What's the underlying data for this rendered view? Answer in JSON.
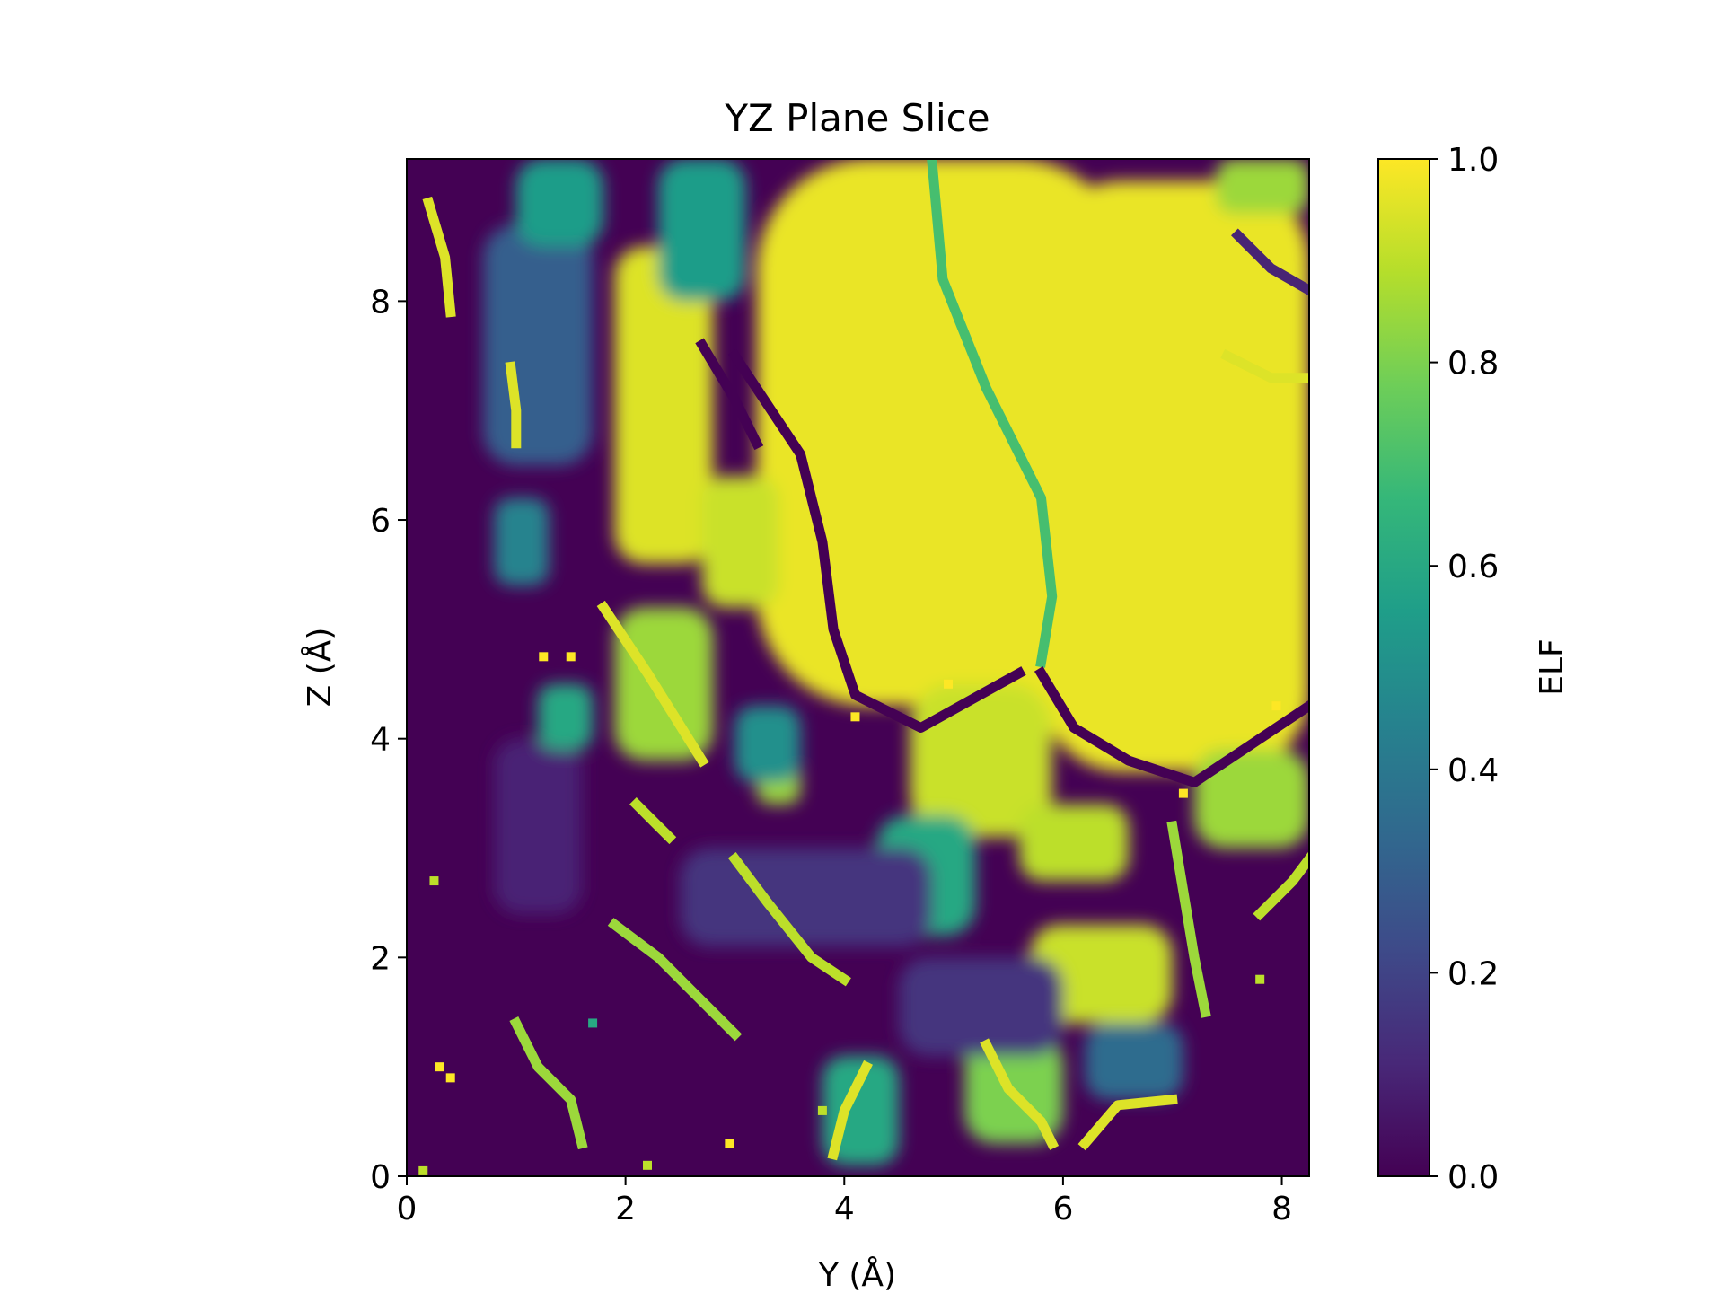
{
  "chart_data": {
    "type": "heatmap",
    "title": "YZ Plane Slice",
    "xlabel": "Y (Å)",
    "ylabel": "Z (Å)",
    "xlim": [
      0,
      8.25
    ],
    "ylim": [
      0,
      9.3
    ],
    "xticks": [
      "0",
      "2",
      "4",
      "6",
      "8"
    ],
    "yticks": [
      "0",
      "2",
      "4",
      "6",
      "8"
    ],
    "colorbar": {
      "label": "ELF",
      "range": [
        0.0,
        1.0
      ],
      "ticks": [
        "0.0",
        "0.2",
        "0.4",
        "0.6",
        "0.8",
        "1.0"
      ],
      "colormap": "viridis"
    },
    "colormap_stops": [
      "#440154",
      "#482878",
      "#3e4a89",
      "#31688e",
      "#26828e",
      "#1f9e89",
      "#35b779",
      "#6ece58",
      "#b5de2b",
      "#fde725"
    ],
    "grid": false,
    "regions": [
      {
        "y": [
          3.2,
          6.6
        ],
        "z": [
          4.3,
          9.3
        ],
        "elf": 0.97
      },
      {
        "y": [
          5.8,
          8.25
        ],
        "z": [
          3.7,
          9.1
        ],
        "elf": 0.97
      },
      {
        "y": [
          7.4,
          8.25
        ],
        "z": [
          8.8,
          9.3
        ],
        "elf": 0.85
      },
      {
        "y": [
          1.9,
          2.8
        ],
        "z": [
          5.6,
          8.5
        ],
        "elf": 0.95
      },
      {
        "y": [
          2.7,
          3.4
        ],
        "z": [
          5.2,
          6.4
        ],
        "elf": 0.92
      },
      {
        "y": [
          1.9,
          2.8
        ],
        "z": [
          3.8,
          5.2
        ],
        "elf": 0.85
      },
      {
        "y": [
          4.6,
          5.9
        ],
        "z": [
          3.1,
          4.5
        ],
        "elf": 0.92
      },
      {
        "y": [
          5.6,
          6.6
        ],
        "z": [
          2.7,
          3.4
        ],
        "elf": 0.9
      },
      {
        "y": [
          5.7,
          7.0
        ],
        "z": [
          1.4,
          2.3
        ],
        "elf": 0.92
      },
      {
        "y": [
          4.3,
          5.2
        ],
        "z": [
          2.2,
          3.3
        ],
        "elf": 0.6
      },
      {
        "y": [
          6.2,
          7.1
        ],
        "z": [
          0.7,
          1.4
        ],
        "elf": 0.35
      },
      {
        "y": [
          5.1,
          6.0
        ],
        "z": [
          0.3,
          1.3
        ],
        "elf": 0.8
      },
      {
        "y": [
          3.8,
          4.5
        ],
        "z": [
          0.1,
          1.1
        ],
        "elf": 0.6
      },
      {
        "y": [
          7.2,
          8.25
        ],
        "z": [
          3.0,
          3.9
        ],
        "elf": 0.85
      },
      {
        "y": [
          0.8,
          1.6
        ],
        "z": [
          2.4,
          4.0
        ],
        "elf": 0.1
      },
      {
        "y": [
          0.8,
          1.3
        ],
        "z": [
          5.4,
          6.2
        ],
        "elf": 0.45
      },
      {
        "y": [
          1.2,
          1.7
        ],
        "z": [
          3.9,
          4.5
        ],
        "elf": 0.6
      },
      {
        "y": [
          3.2,
          3.6
        ],
        "z": [
          3.4,
          3.9
        ],
        "elf": 0.85
      },
      {
        "y": [
          3.0,
          3.6
        ],
        "z": [
          3.6,
          4.3
        ],
        "elf": 0.5
      },
      {
        "y": [
          0.7,
          1.7
        ],
        "z": [
          6.5,
          8.7
        ],
        "elf": 0.3
      },
      {
        "y": [
          1.0,
          1.8
        ],
        "z": [
          8.5,
          9.3
        ],
        "elf": 0.55
      },
      {
        "y": [
          2.3,
          3.1
        ],
        "z": [
          8.0,
          9.3
        ],
        "elf": 0.55
      },
      {
        "y": [
          4.5,
          6.0
        ],
        "z": [
          1.1,
          2.0
        ],
        "elf": 0.15
      },
      {
        "y": [
          2.5,
          4.8
        ],
        "z": [
          2.1,
          3.0
        ],
        "elf": 0.15
      }
    ],
    "ridges": [
      {
        "points": [
          [
            3.0,
            7.5
          ],
          [
            3.6,
            6.6
          ],
          [
            3.8,
            5.8
          ],
          [
            3.9,
            5.0
          ],
          [
            4.1,
            4.4
          ],
          [
            4.7,
            4.1
          ],
          [
            5.6,
            4.6
          ]
        ],
        "elf": 0.0
      },
      {
        "points": [
          [
            4.8,
            9.3
          ],
          [
            4.9,
            8.2
          ],
          [
            5.3,
            7.2
          ],
          [
            5.8,
            6.2
          ],
          [
            5.9,
            5.3
          ],
          [
            5.8,
            4.7
          ]
        ],
        "elf": 0.7
      },
      {
        "points": [
          [
            5.8,
            4.6
          ],
          [
            6.1,
            4.1
          ],
          [
            6.6,
            3.8
          ],
          [
            7.2,
            3.6
          ],
          [
            8.25,
            4.3
          ]
        ],
        "elf": 0.0
      },
      {
        "points": [
          [
            2.7,
            7.6
          ],
          [
            3.0,
            7.1
          ],
          [
            3.2,
            6.7
          ]
        ],
        "elf": 0.0
      },
      {
        "points": [
          [
            0.2,
            8.9
          ],
          [
            0.35,
            8.4
          ],
          [
            0.4,
            7.9
          ]
        ],
        "elf": 0.95
      },
      {
        "points": [
          [
            0.95,
            7.4
          ],
          [
            1.0,
            7.0
          ],
          [
            1.0,
            6.7
          ]
        ],
        "elf": 0.95
      },
      {
        "points": [
          [
            1.8,
            5.2
          ],
          [
            2.2,
            4.6
          ],
          [
            2.7,
            3.8
          ]
        ],
        "elf": 0.95
      },
      {
        "points": [
          [
            1.9,
            2.3
          ],
          [
            2.3,
            2.0
          ],
          [
            2.6,
            1.7
          ],
          [
            3.0,
            1.3
          ]
        ],
        "elf": 0.85
      },
      {
        "points": [
          [
            3.0,
            2.9
          ],
          [
            3.3,
            2.5
          ],
          [
            3.7,
            2.0
          ],
          [
            4.0,
            1.8
          ]
        ],
        "elf": 0.9
      },
      {
        "points": [
          [
            1.0,
            1.4
          ],
          [
            1.2,
            1.0
          ],
          [
            1.5,
            0.7
          ],
          [
            1.6,
            0.3
          ]
        ],
        "elf": 0.85
      },
      {
        "points": [
          [
            5.3,
            1.2
          ],
          [
            5.5,
            0.8
          ],
          [
            5.8,
            0.5
          ],
          [
            5.9,
            0.3
          ]
        ],
        "elf": 0.95
      },
      {
        "points": [
          [
            6.2,
            0.3
          ],
          [
            6.5,
            0.65
          ],
          [
            7.0,
            0.7
          ]
        ],
        "elf": 0.95
      },
      {
        "points": [
          [
            7.0,
            3.2
          ],
          [
            7.1,
            2.6
          ],
          [
            7.2,
            2.0
          ],
          [
            7.3,
            1.5
          ]
        ],
        "elf": 0.85
      },
      {
        "points": [
          [
            7.8,
            2.4
          ],
          [
            8.1,
            2.7
          ],
          [
            8.25,
            2.9
          ]
        ],
        "elf": 0.9
      },
      {
        "points": [
          [
            3.9,
            0.2
          ],
          [
            4.0,
            0.6
          ],
          [
            4.2,
            1.0
          ]
        ],
        "elf": 0.95
      },
      {
        "points": [
          [
            2.1,
            3.4
          ],
          [
            2.3,
            3.2
          ],
          [
            2.4,
            3.1
          ]
        ],
        "elf": 0.9
      },
      {
        "points": [
          [
            7.6,
            8.6
          ],
          [
            7.9,
            8.3
          ],
          [
            8.25,
            8.1
          ]
        ],
        "elf": 0.1
      },
      {
        "points": [
          [
            7.5,
            7.5
          ],
          [
            7.9,
            7.3
          ],
          [
            8.25,
            7.3
          ]
        ],
        "elf": 0.95
      }
    ],
    "spots": [
      {
        "y": 1.25,
        "z": 4.75,
        "elf": 1.0
      },
      {
        "y": 1.5,
        "z": 4.75,
        "elf": 1.0
      },
      {
        "y": 0.3,
        "z": 1.0,
        "elf": 1.0
      },
      {
        "y": 0.4,
        "z": 0.9,
        "elf": 1.0
      },
      {
        "y": 2.95,
        "z": 0.3,
        "elf": 1.0
      },
      {
        "y": 4.95,
        "z": 4.5,
        "elf": 1.0
      },
      {
        "y": 4.1,
        "z": 4.2,
        "elf": 1.0
      },
      {
        "y": 7.95,
        "z": 4.3,
        "elf": 1.0
      },
      {
        "y": 7.1,
        "z": 3.5,
        "elf": 1.0
      },
      {
        "y": 3.8,
        "z": 0.6,
        "elf": 0.9
      },
      {
        "y": 0.25,
        "z": 2.7,
        "elf": 0.9
      },
      {
        "y": 2.2,
        "z": 0.1,
        "elf": 0.9
      },
      {
        "y": 0.15,
        "z": 0.05,
        "elf": 0.9
      },
      {
        "y": 1.7,
        "z": 1.4,
        "elf": 0.6
      },
      {
        "y": 7.8,
        "z": 1.8,
        "elf": 0.9
      }
    ]
  }
}
